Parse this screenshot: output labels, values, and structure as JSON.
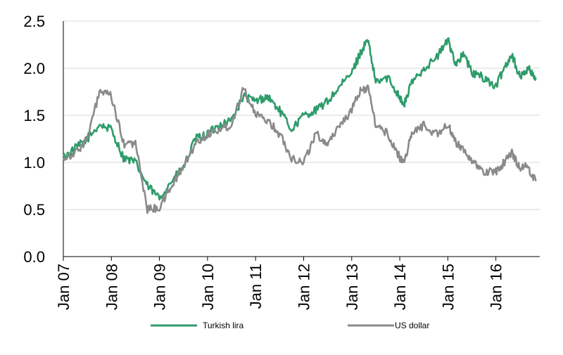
{
  "chart_data": {
    "type": "line",
    "title": "",
    "xlabel": "",
    "ylabel": "",
    "x_range": [
      "2007-01",
      "2016-11"
    ],
    "ylim": [
      0.0,
      2.5
    ],
    "y_ticks": [
      "0.0",
      "0.5",
      "1.0",
      "1.5",
      "2.0",
      "2.5"
    ],
    "x_ticks": [
      "Jan 07",
      "Jan 08",
      "Jan 09",
      "Jan 10",
      "Jan 11",
      "Jan 12",
      "Jan 13",
      "Jan 14",
      "Jan 15",
      "Jan 16"
    ],
    "grid": "horizontal",
    "legend_position": "bottom",
    "series": [
      {
        "name": "Turkish lira",
        "color": "#2e9c6a",
        "x": [
          "2007-01",
          "2007-04",
          "2007-07",
          "2007-10",
          "2008-01",
          "2008-04",
          "2008-07",
          "2008-10",
          "2009-01",
          "2009-04",
          "2009-07",
          "2009-10",
          "2010-01",
          "2010-04",
          "2010-07",
          "2010-10",
          "2011-01",
          "2011-04",
          "2011-07",
          "2011-10",
          "2012-01",
          "2012-04",
          "2012-07",
          "2012-10",
          "2013-01",
          "2013-03",
          "2013-05",
          "2013-07",
          "2013-10",
          "2014-01",
          "2014-02",
          "2014-04",
          "2014-07",
          "2014-10",
          "2015-01",
          "2015-03",
          "2015-05",
          "2015-07",
          "2015-10",
          "2016-01",
          "2016-03",
          "2016-05",
          "2016-07",
          "2016-09",
          "2016-11"
        ],
        "y": [
          1.05,
          1.15,
          1.25,
          1.4,
          1.35,
          1.05,
          1.0,
          0.75,
          0.62,
          0.8,
          0.95,
          1.25,
          1.3,
          1.4,
          1.45,
          1.7,
          1.65,
          1.7,
          1.55,
          1.35,
          1.5,
          1.55,
          1.65,
          1.8,
          1.95,
          2.15,
          2.3,
          1.85,
          1.9,
          1.7,
          1.6,
          1.85,
          2.0,
          2.1,
          2.3,
          2.05,
          2.15,
          1.95,
          1.9,
          1.8,
          2.0,
          2.15,
          1.9,
          2.0,
          1.9
        ]
      },
      {
        "name": "US dollar",
        "color": "#8a8a8a",
        "x": [
          "2007-01",
          "2007-04",
          "2007-07",
          "2007-10",
          "2008-01",
          "2008-04",
          "2008-07",
          "2008-10",
          "2009-01",
          "2009-04",
          "2009-07",
          "2009-10",
          "2010-01",
          "2010-04",
          "2010-07",
          "2010-10",
          "2011-01",
          "2011-04",
          "2011-07",
          "2011-10",
          "2012-01",
          "2012-04",
          "2012-07",
          "2012-10",
          "2013-01",
          "2013-03",
          "2013-05",
          "2013-07",
          "2013-10",
          "2014-01",
          "2014-02",
          "2014-04",
          "2014-07",
          "2014-10",
          "2015-01",
          "2015-03",
          "2015-05",
          "2015-07",
          "2015-10",
          "2016-01",
          "2016-03",
          "2016-05",
          "2016-07",
          "2016-09",
          "2016-11"
        ],
        "y": [
          1.05,
          1.1,
          1.25,
          1.75,
          1.7,
          1.2,
          1.2,
          0.5,
          0.52,
          0.75,
          0.95,
          1.2,
          1.3,
          1.35,
          1.4,
          1.8,
          1.5,
          1.45,
          1.3,
          1.05,
          1.0,
          1.3,
          1.2,
          1.4,
          1.55,
          1.75,
          1.8,
          1.4,
          1.3,
          1.05,
          1.0,
          1.3,
          1.4,
          1.3,
          1.4,
          1.2,
          1.15,
          1.0,
          0.9,
          0.9,
          1.0,
          1.1,
          0.95,
          0.95,
          0.8
        ]
      }
    ]
  }
}
